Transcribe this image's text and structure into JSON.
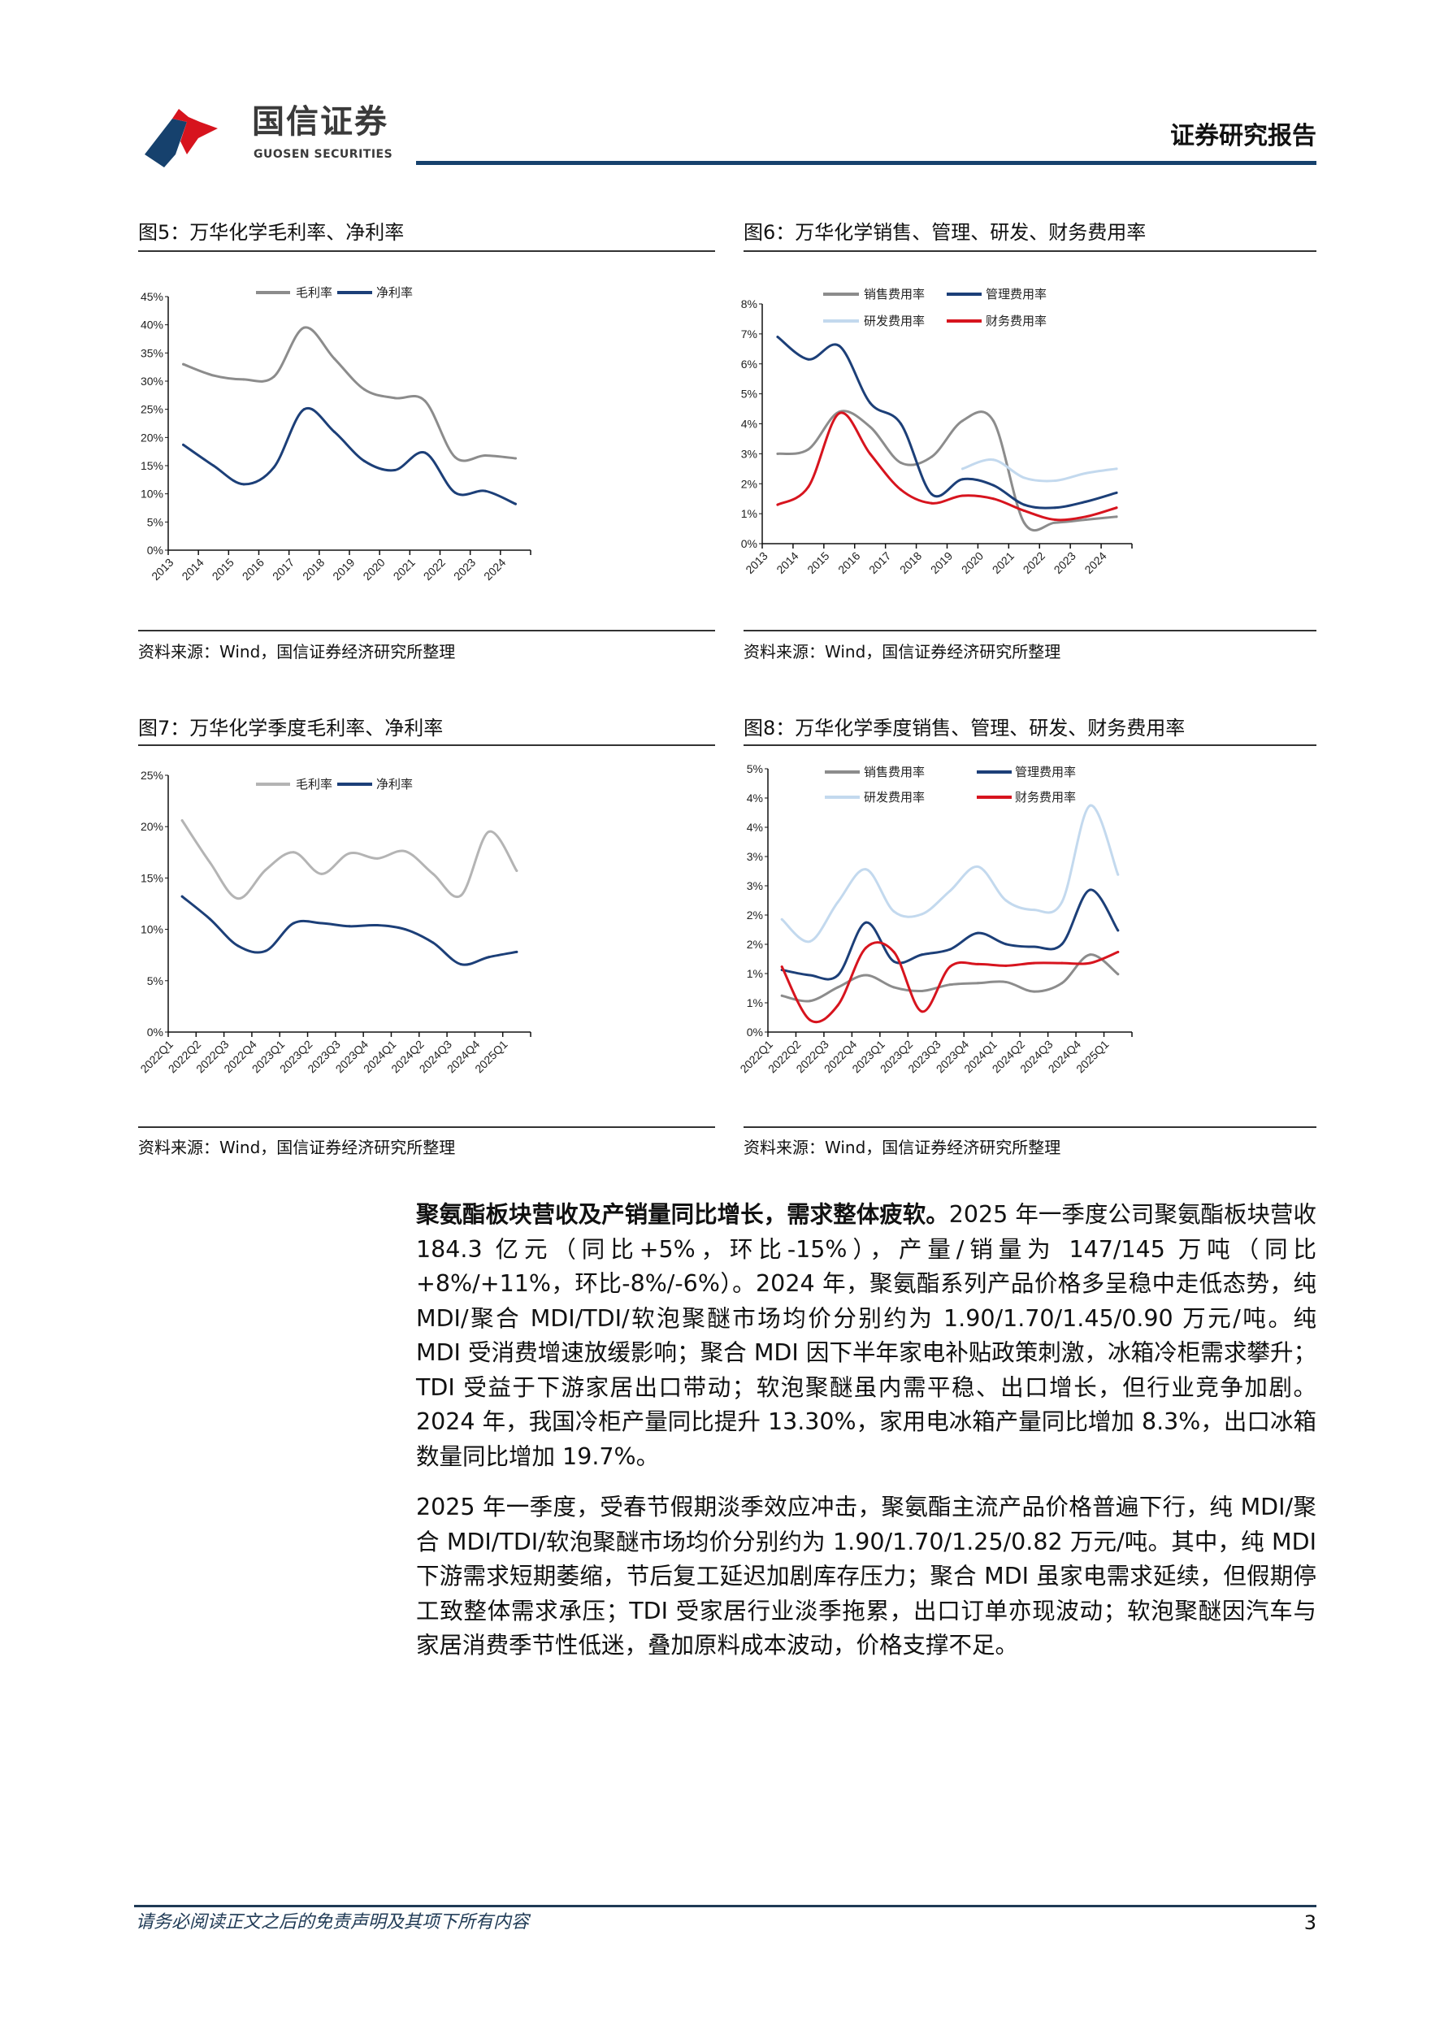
{
  "header": {
    "logo_cn": "国信证券",
    "logo_en": "GUOSEN SECURITIES",
    "report_type": "证券研究报告",
    "brand_blue": "#16416d",
    "brand_red": "#d7141e"
  },
  "figures": [
    {
      "title": "图5：万华化学毛利率、净利率",
      "source": "资料来源：Wind，国信证券经济研究所整理"
    },
    {
      "title": "图6：万华化学销售、管理、研发、财务费用率",
      "source": "资料来源：Wind，国信证券经济研究所整理"
    },
    {
      "title": "图7：万华化学季度毛利率、净利率",
      "source": "资料来源：Wind，国信证券经济研究所整理"
    },
    {
      "title": "图8：万华化学季度销售、管理、研发、财务费用率",
      "source": "资料来源：Wind，国信证券经济研究所整理"
    }
  ],
  "chart_data": [
    {
      "type": "line",
      "title": "万华化学毛利率、净利率",
      "categories": [
        "2013",
        "2014",
        "2015",
        "2016",
        "2017",
        "2018",
        "2019",
        "2020",
        "2021",
        "2022",
        "2023",
        "2024"
      ],
      "ylim": [
        0,
        45
      ],
      "yticks": [
        "0%",
        "5%",
        "10%",
        "15%",
        "20%",
        "25%",
        "30%",
        "35%",
        "40%",
        "45%"
      ],
      "legend": "top-center",
      "series": [
        {
          "name": "毛利率",
          "color": "#8c8c8c",
          "values": [
            33.0,
            31.0,
            30.3,
            30.8,
            39.5,
            34.0,
            28.5,
            27.0,
            26.5,
            16.5,
            16.8,
            16.3
          ]
        },
        {
          "name": "净利率",
          "color": "#1c3f78",
          "values": [
            18.7,
            15.0,
            11.7,
            14.7,
            25.0,
            21.0,
            15.8,
            14.2,
            17.3,
            10.2,
            10.5,
            8.2
          ]
        }
      ]
    },
    {
      "type": "line",
      "title": "万华化学销售、管理、研发、财务费用率",
      "categories": [
        "2013",
        "2014",
        "2015",
        "2016",
        "2017",
        "2018",
        "2019",
        "2020",
        "2021",
        "2022",
        "2023",
        "2024"
      ],
      "ylim": [
        0,
        8
      ],
      "yticks": [
        "0%",
        "1%",
        "2%",
        "3%",
        "4%",
        "5%",
        "6%",
        "7%",
        "8%"
      ],
      "legend": "top-center",
      "series": [
        {
          "name": "销售费用率",
          "color": "#8c8c8c",
          "values": [
            3.0,
            3.15,
            4.4,
            3.9,
            2.7,
            2.9,
            4.1,
            4.1,
            0.7,
            0.7,
            0.8,
            0.9
          ]
        },
        {
          "name": "管理费用率",
          "color": "#1c3f78",
          "values": [
            6.9,
            6.15,
            6.6,
            4.7,
            4.0,
            1.65,
            2.15,
            1.95,
            1.3,
            1.2,
            1.4,
            1.7
          ]
        },
        {
          "name": "研发费用率",
          "color": "#c3d9ee",
          "values": [
            null,
            null,
            null,
            null,
            null,
            null,
            2.5,
            2.8,
            2.2,
            2.1,
            2.35,
            2.5
          ]
        },
        {
          "name": "财务费用率",
          "color": "#d7141e",
          "values": [
            1.3,
            1.9,
            4.35,
            3.0,
            1.8,
            1.35,
            1.6,
            1.5,
            1.1,
            0.8,
            0.9,
            1.2
          ]
        }
      ]
    },
    {
      "type": "line",
      "title": "万华化学季度毛利率、净利率",
      "categories": [
        "2022Q1",
        "2022Q2",
        "2022Q3",
        "2022Q4",
        "2023Q1",
        "2023Q2",
        "2023Q3",
        "2023Q4",
        "2024Q1",
        "2024Q2",
        "2024Q3",
        "2024Q4",
        "2025Q1"
      ],
      "ylim": [
        0,
        25
      ],
      "yticks": [
        "0%",
        "5%",
        "10%",
        "15%",
        "20%",
        "25%"
      ],
      "legend": "top-center",
      "series": [
        {
          "name": "毛利率",
          "color": "#b4b4b4",
          "values": [
            20.6,
            16.5,
            13.0,
            15.8,
            17.5,
            15.4,
            17.4,
            16.9,
            17.6,
            15.4,
            13.3,
            19.5,
            15.7
          ]
        },
        {
          "name": "净利率",
          "color": "#1c3f78",
          "values": [
            13.2,
            11.0,
            8.4,
            7.9,
            10.6,
            10.6,
            10.3,
            10.4,
            10.0,
            8.7,
            6.6,
            7.3,
            7.8
          ]
        }
      ]
    },
    {
      "type": "line",
      "title": "万华化学季度销售、管理、研发、财务费用率",
      "categories": [
        "2022Q1",
        "2022Q2",
        "2022Q3",
        "2022Q4",
        "2023Q1",
        "2023Q2",
        "2023Q3",
        "2023Q4",
        "2024Q1",
        "2024Q2",
        "2024Q3",
        "2024Q4",
        "2025Q1"
      ],
      "ylim": [
        0,
        5
      ],
      "yticks": [
        "0%",
        "1%",
        "1%",
        "2%",
        "2%",
        "3%",
        "3%",
        "4%",
        "4%",
        "5%"
      ],
      "legend": "top-center",
      "series": [
        {
          "name": "销售费用率",
          "color": "#8c8c8c",
          "values": [
            0.69,
            0.59,
            0.85,
            1.08,
            0.85,
            0.78,
            0.9,
            0.93,
            0.95,
            0.77,
            0.93,
            1.47,
            1.1
          ]
        },
        {
          "name": "管理费用率",
          "color": "#1c3f78",
          "values": [
            1.18,
            1.08,
            1.08,
            2.08,
            1.34,
            1.47,
            1.57,
            1.88,
            1.67,
            1.62,
            1.67,
            2.7,
            1.93
          ]
        },
        {
          "name": "研发费用率",
          "color": "#c3d9ee",
          "values": [
            2.14,
            1.72,
            2.47,
            3.09,
            2.29,
            2.24,
            2.68,
            3.14,
            2.5,
            2.32,
            2.47,
            4.3,
            2.99
          ]
        },
        {
          "name": "财务费用率",
          "color": "#d7141e",
          "values": [
            1.24,
            0.23,
            0.51,
            1.6,
            1.52,
            0.39,
            1.24,
            1.29,
            1.26,
            1.31,
            1.31,
            1.31,
            1.52
          ]
        }
      ]
    }
  ],
  "body": {
    "p1_lead": "聚氨酯板块营收及产销量同比增长，需求整体疲软。",
    "p1_rest": "2025 年一季度公司聚氨酯板块营收 184.3 亿元（同比+5%，环比-15%），产量/销量为 147/145 万吨（同比+8%/+11%，环比-8%/-6%）。2024 年，聚氨酯系列产品价格多呈稳中走低态势，纯 MDI/聚合 MDI/TDI/软泡聚醚市场均价分别约为 1.90/1.70/1.45/0.90 万元/吨。纯 MDI 受消费增速放缓影响；聚合 MDI 因下半年家电补贴政策刺激，冰箱冷柜需求攀升；TDI 受益于下游家居出口带动；软泡聚醚虽内需平稳、出口增长，但行业竞争加剧。2024 年，我国冷柜产量同比提升 13.30%，家用电冰箱产量同比增加 8.3%，出口冰箱数量同比增加 19.7%。",
    "p2": "2025 年一季度，受春节假期淡季效应冲击，聚氨酯主流产品价格普遍下行，纯 MDI/聚合 MDI/TDI/软泡聚醚市场均价分别约为 1.90/1.70/1.25/0.82 万元/吨。其中，纯 MDI 下游需求短期萎缩，节后复工延迟加剧库存压力；聚合 MDI 虽家电需求延续，但假期停工致整体需求承压；TDI 受家居行业淡季拖累，出口订单亦现波动；软泡聚醚因汽车与家居消费季节性低迷，叠加原料成本波动，价格支撑不足。"
  },
  "footer": {
    "disclaimer": "请务必阅读正文之后的免责声明及其项下所有内容",
    "page_number": "3"
  }
}
